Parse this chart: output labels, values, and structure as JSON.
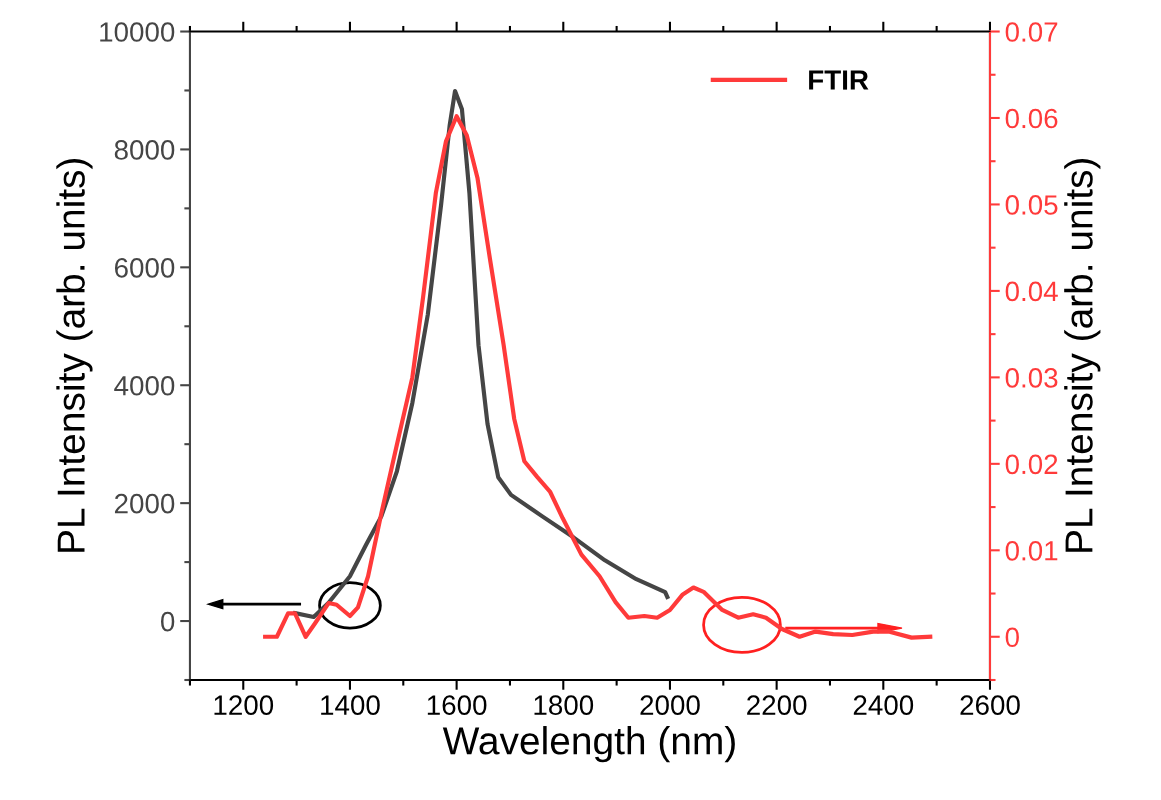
{
  "chart_data": {
    "type": "line",
    "xlabel": "Wavelength (nm)",
    "ylabel": "PL Intensity (arb. units)",
    "y2label": "PL Intensity (arb. units)",
    "xlim": [
      1100,
      2600
    ],
    "ylim": [
      -1000,
      10000
    ],
    "y2lim": [
      -0.005,
      0.07
    ],
    "xticks": [
      {
        "value": 1100,
        "label": null
      },
      1200,
      {
        "value": 1300,
        "label": null
      },
      1400,
      {
        "value": 1500,
        "label": null
      },
      1600,
      {
        "value": 1700,
        "label": null
      },
      1800,
      {
        "value": 1900,
        "label": null
      },
      2000,
      {
        "value": 2100,
        "label": null
      },
      2200,
      {
        "value": 2300,
        "label": null
      },
      2400,
      {
        "value": 2500,
        "label": null
      },
      2600
    ],
    "yticks": [
      {
        "value": -1000,
        "label": null
      },
      0,
      {
        "value": 1000,
        "label": null
      },
      2000,
      {
        "value": 3000,
        "label": null
      },
      4000,
      {
        "value": 5000,
        "label": null
      },
      6000,
      {
        "value": 7000,
        "label": null
      },
      8000,
      {
        "value": 9000,
        "label": null
      },
      10000
    ],
    "y2ticks": [
      {
        "value": -0.005,
        "label": null
      },
      0,
      {
        "value": 0.005,
        "label": null
      },
      0.01,
      {
        "value": 0.015,
        "label": null
      },
      0.02,
      {
        "value": 0.025,
        "label": null
      },
      0.03,
      {
        "value": 0.035,
        "label": null
      },
      0.04,
      {
        "value": 0.045,
        "label": null
      },
      0.05,
      {
        "value": 0.055,
        "label": null
      },
      0.06,
      {
        "value": 0.065,
        "label": null
      },
      0.07
    ],
    "legend": "top right",
    "grid": false,
    "marker": "none",
    "line_style": "solid",
    "series": [
      {
        "color": "#454545",
        "axis": "y",
        "x": [
          1297,
          1332,
          1360,
          1400,
          1430,
          1459,
          1488,
          1517,
          1546,
          1571,
          1587,
          1597,
          1610,
          1624,
          1641,
          1658,
          1678,
          1702,
          1760,
          1819,
          1878,
          1937,
          1991,
          1995
        ],
        "values": [
          135,
          70,
          310,
          760,
          1290,
          1780,
          2540,
          3700,
          5200,
          7070,
          8410,
          8990,
          8680,
          7260,
          4680,
          3340,
          2440,
          2140,
          1780,
          1420,
          1030,
          710,
          490,
          410
        ]
      },
      {
        "name": "FTIR",
        "color": "#ff3a3a",
        "axis": "y2",
        "x": [
          1241,
          1263,
          1284,
          1297,
          1317,
          1334,
          1360,
          1375,
          1400,
          1415,
          1434,
          1459,
          1488,
          1517,
          1537,
          1561,
          1580,
          1600,
          1619,
          1639,
          1663,
          1688,
          1708,
          1727,
          1751,
          1775,
          1799,
          1834,
          1868,
          1898,
          1922,
          1952,
          1976,
          2000,
          2024,
          2044,
          2063,
          2098,
          2128,
          2156,
          2180,
          2210,
          2243,
          2273,
          2306,
          2342,
          2381,
          2410,
          2453,
          2488
        ],
        "values": [
          0,
          0,
          0.0027,
          0.0027,
          0,
          0.0015,
          0.0039,
          0.0037,
          0.0024,
          0.0034,
          0.007,
          0.0143,
          0.0222,
          0.03,
          0.0392,
          0.0513,
          0.0573,
          0.0602,
          0.058,
          0.0531,
          0.0435,
          0.0338,
          0.0252,
          0.0203,
          0.0185,
          0.0168,
          0.0137,
          0.0095,
          0.007,
          0.004,
          0.0022,
          0.0024,
          0.0022,
          0.0031,
          0.0049,
          0.0057,
          0.0052,
          0.0031,
          0.0022,
          0.0026,
          0.0022,
          0.0009,
          0,
          0.0006,
          0.0003,
          0.0002,
          0.0006,
          0.0006,
          -0.0001,
          0
        ]
      }
    ]
  }
}
